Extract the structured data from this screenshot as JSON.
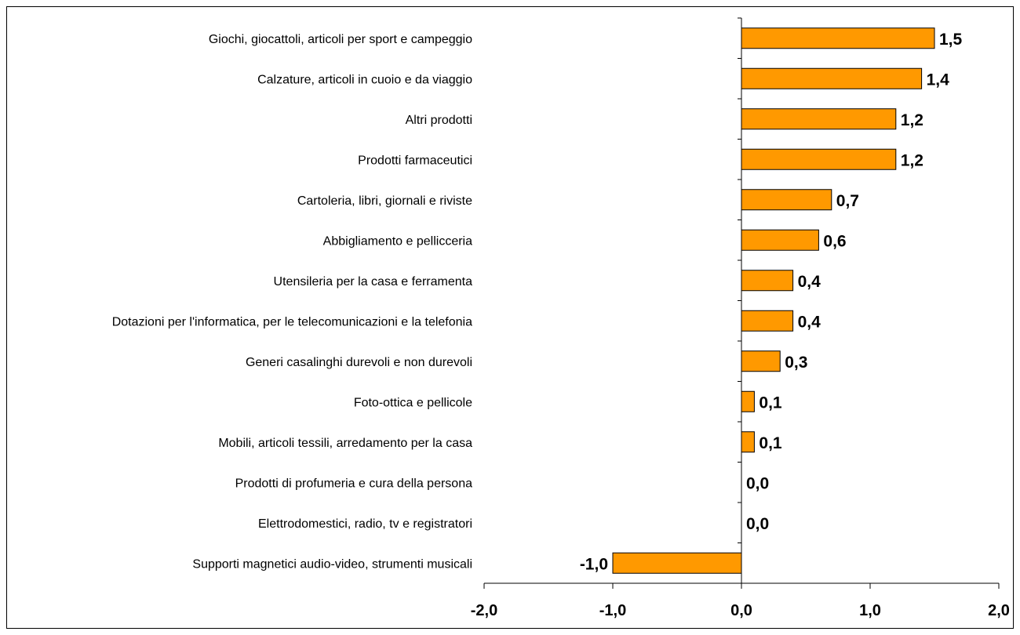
{
  "chart_data": {
    "type": "bar",
    "orientation": "horizontal",
    "categories": [
      "Giochi, giocattoli, articoli per sport e campeggio",
      "Calzature, articoli in cuoio e da viaggio",
      "Altri prodotti",
      "Prodotti farmaceutici",
      "Cartoleria, libri, giornali e riviste",
      "Abbigliamento e pellicceria",
      "Utensileria per la casa e ferramenta",
      "Dotazioni per l'informatica, per le telecomunicazioni e la telefonia",
      "Generi casalinghi durevoli e non durevoli",
      "Foto-ottica e pellicole",
      "Mobili, articoli tessili, arredamento per la casa",
      "Prodotti di profumeria e cura della persona",
      "Elettrodomestici, radio, tv e registratori",
      "Supporti magnetici audio-video, strumenti musicali"
    ],
    "values": [
      1.5,
      1.4,
      1.2,
      1.2,
      0.7,
      0.6,
      0.4,
      0.4,
      0.3,
      0.1,
      0.1,
      0.0,
      0.0,
      -1.0
    ],
    "value_labels": [
      "1,5",
      "1,4",
      "1,2",
      "1,2",
      "0,7",
      "0,6",
      "0,4",
      "0,4",
      "0,3",
      "0,1",
      "0,1",
      "0,0",
      "0,0",
      "-1,0"
    ],
    "xlim": [
      -2.0,
      2.0
    ],
    "x_ticks": [
      -2.0,
      -1.0,
      0.0,
      1.0,
      2.0
    ],
    "x_tick_labels": [
      "-2,0",
      "-1,0",
      "0,0",
      "1,0",
      "2,0"
    ],
    "title": "",
    "xlabel": "",
    "ylabel": "",
    "grid": false,
    "bar_color": "#FF9900",
    "bar_edge_color": "#000000"
  }
}
